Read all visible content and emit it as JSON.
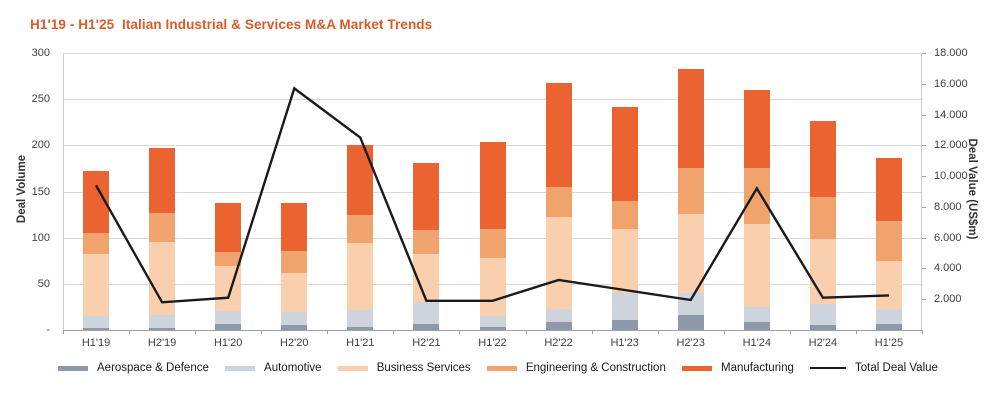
{
  "title": "H1'19 - H1'25  Italian Industrial & Services M&A Market Trends",
  "chart_data": {
    "type": "bar",
    "subtype": "stacked-bars-with-line-overlay",
    "title": "H1'19 - H1'25  Italian Industrial & Services M&A Market Trends",
    "categories": [
      "H1'19",
      "H2'19",
      "H1'20",
      "H2'20",
      "H1'21",
      "H2'21",
      "H1'22",
      "H2'22",
      "H1'23",
      "H2'23",
      "H1'24",
      "H2'24",
      "H1'25"
    ],
    "series": [
      {
        "name": "Aerospace & Defence",
        "color": "#8D98A9",
        "values": [
          2,
          2,
          6,
          5,
          3,
          7,
          3,
          9,
          11,
          16,
          9,
          5,
          6
        ]
      },
      {
        "name": "Automotive",
        "color": "#CDD4DC",
        "values": [
          13,
          14,
          15,
          15,
          19,
          23,
          12,
          14,
          29,
          24,
          16,
          23,
          17
        ]
      },
      {
        "name": "Business Services",
        "color": "#F9CFAE",
        "values": [
          67,
          79,
          48,
          42,
          72,
          52,
          63,
          99,
          69,
          86,
          90,
          71,
          52
        ]
      },
      {
        "name": "Engineering & Construction",
        "color": "#F1A36E",
        "values": [
          23,
          32,
          15,
          24,
          31,
          26,
          31,
          33,
          31,
          49,
          60,
          45,
          43
        ]
      },
      {
        "name": "Manufacturing",
        "color": "#EB6331",
        "values": [
          67,
          70,
          54,
          52,
          75,
          73,
          95,
          113,
          101,
          108,
          85,
          82,
          68
        ]
      }
    ],
    "bar_totals": [
      172,
      197,
      138,
      138,
      200,
      181,
      204,
      268,
      241,
      283,
      260,
      226,
      186
    ],
    "line_series": {
      "name": "Total Deal Value",
      "color": "#1a1a1a",
      "axis": "right",
      "values": [
        9400,
        1800,
        2100,
        15700,
        12500,
        1900,
        1900,
        3250,
        2600,
        1950,
        9200,
        2100,
        2250
      ]
    },
    "ylabel_left": "Deal Volume",
    "ylabel_right": "Deal Value (US$m)",
    "left_axis": {
      "min": 0,
      "max": 300,
      "tick_values": [
        300,
        250,
        200,
        150,
        100,
        50,
        0
      ],
      "tick_labels": [
        "300",
        "250",
        "200",
        "150",
        "100",
        "50",
        "-"
      ]
    },
    "right_axis": {
      "min": 0,
      "max": 18000,
      "tick_values": [
        18000,
        16000,
        14000,
        12000,
        10000,
        8000,
        6000,
        4000,
        2000
      ],
      "tick_labels": [
        "18.000",
        "16.000",
        "14.000",
        "12.000",
        "10.000",
        "8.000",
        "6.000",
        "4.000",
        "2.000"
      ]
    },
    "grid": "horizontal",
    "legend_position": "bottom",
    "legend": [
      "Aerospace & Defence",
      "Automotive",
      "Business Services",
      "Engineering & Construction",
      "Manufacturing",
      "Total Deal Value"
    ],
    "title_color": "#DC5A28"
  }
}
